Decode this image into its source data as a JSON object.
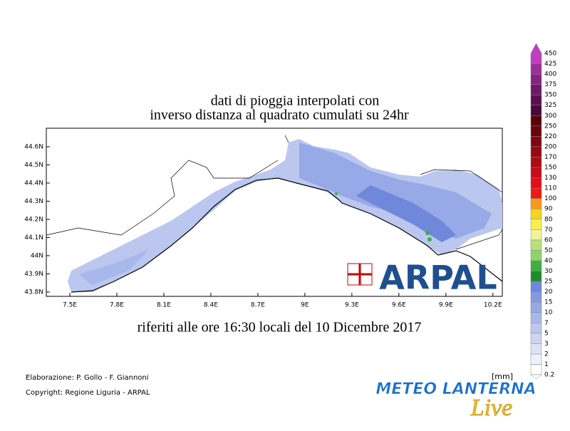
{
  "title_lines": [
    "dati di pioggia interpolati con",
    "inverso distanza al quadrato cumulati su 24hr"
  ],
  "subtitle": "riferiti alle ore 16:30 locali del 10 Dicembre 2017",
  "map": {
    "xlim": [
      7.35,
      10.26
    ],
    "ylim": [
      43.776,
      44.702
    ],
    "xticks": [
      {
        "value": 7.5,
        "label": "7.5E"
      },
      {
        "value": 7.8,
        "label": "7.8E"
      },
      {
        "value": 8.1,
        "label": "8.1E"
      },
      {
        "value": 8.4,
        "label": "8.4E"
      },
      {
        "value": 8.7,
        "label": "8.7E"
      },
      {
        "value": 9,
        "label": "9E"
      },
      {
        "value": 9.3,
        "label": "9.3E"
      },
      {
        "value": 9.6,
        "label": "9.6E"
      },
      {
        "value": 9.9,
        "label": "9.9E"
      },
      {
        "value": 10.2,
        "label": "10.2E"
      }
    ],
    "yticks": [
      {
        "value": 43.8,
        "label": "43.8N"
      },
      {
        "value": 43.9,
        "label": "43.9N"
      },
      {
        "value": 44,
        "label": "44N"
      },
      {
        "value": 44.1,
        "label": "44.1N"
      },
      {
        "value": 44.2,
        "label": "44.2N"
      },
      {
        "value": 44.3,
        "label": "44.3N"
      },
      {
        "value": 44.4,
        "label": "44.4N"
      },
      {
        "value": 44.5,
        "label": "44.5N"
      },
      {
        "value": 44.6,
        "label": "44.6N"
      }
    ]
  },
  "colorbar": {
    "unit": "[mm]",
    "labels": [
      0.2,
      1,
      2,
      3,
      5,
      7,
      10,
      15,
      20,
      25,
      30,
      40,
      50,
      60,
      70,
      80,
      90,
      100,
      110,
      130,
      150,
      170,
      200,
      220,
      250,
      300,
      325,
      350,
      375,
      400,
      425,
      450
    ],
    "colors": [
      "#ffffff",
      "#eef0fb",
      "#dde3f7",
      "#ccd5f3",
      "#bbc7ef",
      "#a9b8eb",
      "#97a9e6",
      "#8399e0",
      "#6f88da",
      "#1e8c2a",
      "#3cb043",
      "#8fd36a",
      "#b8e07a",
      "#f2f29a",
      "#f5f050",
      "#f2d61e",
      "#f59a1a",
      "#f01a14",
      "#e0101a",
      "#c80c18",
      "#b00a14",
      "#980814",
      "#800610",
      "#6a040c",
      "#580408",
      "#4a0a3a",
      "#5c1050",
      "#701868",
      "#882280",
      "#a02c9c",
      "#c03cc0"
    ]
  },
  "footer": [
    "Elaborazione: P. Gollo - F. Giannoni",
    "Copyright: Regione Liguria - ARPAL"
  ],
  "logo": "ARPAL",
  "brand": "METEO LANTERNA",
  "brand_script": "Live"
}
